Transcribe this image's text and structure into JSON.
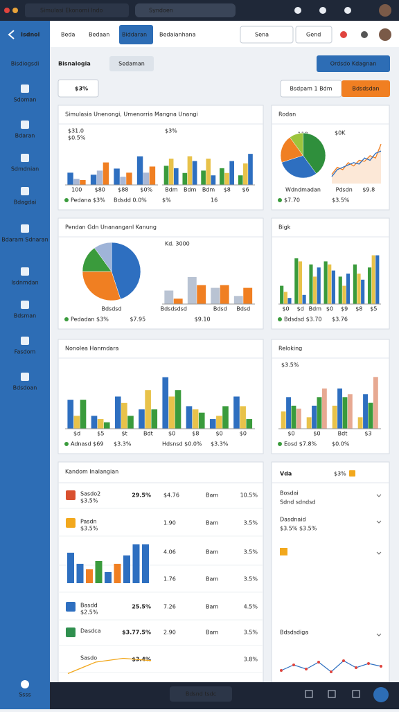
{
  "browser": {
    "tab": "Simulasi Ekonomi Indo",
    "tab2": "Syndoen"
  },
  "header": {
    "logo": "Isdnol",
    "nav": [
      "Beda",
      "Bedaan",
      "Biddaran",
      "Bedaianhana"
    ],
    "search": "Sena",
    "search2": "Gend"
  },
  "sidebar": {
    "title": "Bisdiogsdi",
    "items": [
      "Sdoman",
      "Bdaran",
      "Sdmdnian",
      "Bdagdai",
      "Bdaram Sdnaran",
      "Isdnmdan",
      "Bdsman",
      "Fasdom",
      "Bdsdoan"
    ],
    "footer": "Ssss"
  },
  "page": {
    "title": "Bisnalogia",
    "badge": "Sedaman",
    "button": "Ordsdo Kdagnan",
    "search": "$3%",
    "filter": "Bsdpam 1 Bdm",
    "action": "Bdsdsdan"
  },
  "panels": [
    {
      "title": "Simulasia Unenongi, Umenorria Mangna Unangi",
      "charts": [
        {
          "type": "bar",
          "notes": [
            "$31.0",
            "$0.5%"
          ],
          "categories": [
            "100",
            "$80",
            "$88",
            "$0%"
          ],
          "ylim": [
            0,
            100
          ],
          "series": [
            {
              "color": "#2e6fc0",
              "values": [
                30,
                25,
                40,
                70
              ]
            },
            {
              "color": "#a9b8d6",
              "values": [
                15,
                35,
                20,
                30
              ]
            },
            {
              "color": "#f07f22",
              "values": [
                12,
                55,
                30,
                45
              ]
            }
          ]
        },
        {
          "type": "bar",
          "notes": [
            "$3%"
          ],
          "categories": [
            "Bdm",
            "Bdm",
            "Bdm",
            "$8",
            "$6"
          ],
          "ylim": [
            0,
            100
          ],
          "series": [
            {
              "color": "#3a9b3c",
              "values": [
                40,
                25,
                30,
                35,
                20
              ]
            },
            {
              "color": "#e8c24a",
              "values": [
                55,
                60,
                55,
                25,
                45
              ]
            },
            {
              "color": "#2e6fc0",
              "values": [
                35,
                50,
                20,
                50,
                65
              ]
            }
          ]
        }
      ],
      "footer": [
        "Pedana $3%",
        "Bdsdd 0.0%",
        "$%",
        "16"
      ]
    },
    {
      "title": "Rodan",
      "charts": [
        {
          "type": "pie",
          "notes": [
            "110"
          ],
          "values": [
            40,
            30,
            20,
            10
          ],
          "colors": [
            "#2f8f3c",
            "#2e6fc0",
            "#f07f22",
            "#9cc43c"
          ],
          "bottom": [
            "Wdndmadan"
          ]
        },
        {
          "type": "line",
          "notes": [
            "$0K"
          ],
          "ylim": [
            0,
            100
          ],
          "series": [
            {
              "color": "#f07f22",
              "values": [
                20,
                35,
                30,
                45,
                38,
                50,
                48,
                60,
                55,
                85
              ]
            },
            {
              "color": "#2e6fc0",
              "values": [
                15,
                30,
                35,
                40,
                45,
                42,
                55,
                50,
                65,
                70
              ]
            }
          ],
          "bottom": [
            "Pdsdn",
            "$9.8"
          ]
        }
      ],
      "footer": [
        "$7.70",
        "$3.5%"
      ]
    },
    {
      "title": "Pendan Gdn Unananganl Kanung",
      "charts": [
        {
          "type": "pie",
          "values": [
            45,
            30,
            15,
            10
          ],
          "colors": [
            "#2e6fc0",
            "#f07f22",
            "#3a9b3c",
            "#9fb4d8"
          ],
          "bottom": [
            "Bdsdsd"
          ]
        },
        {
          "type": "bar",
          "notes": [
            "Kd. 3000"
          ],
          "categories": [
            "Bdsdsdsd",
            null,
            "Bdsd",
            "Bdsd"
          ],
          "ylim": [
            0,
            100
          ],
          "series": [
            {
              "color": "#b9c3d3",
              "values": [
                25,
                50,
                30,
                15
              ]
            },
            {
              "color": "#f07f22",
              "values": [
                10,
                35,
                35,
                30
              ]
            }
          ]
        }
      ],
      "footer": [
        "Pedadan $3%",
        "$7.95",
        "$9.10"
      ]
    },
    {
      "title": "Bigk",
      "charts": [
        {
          "type": "bar",
          "categories": [
            "$0",
            "$d",
            "Bdm",
            "$0",
            "$9",
            "$8",
            "$5"
          ],
          "ylim": [
            0,
            100
          ],
          "series": [
            {
              "color": "#3a9b3c",
              "values": [
                30,
                75,
                65,
                70,
                45,
                65,
                60
              ]
            },
            {
              "color": "#e8c24a",
              "values": [
                20,
                70,
                45,
                65,
                30,
                50,
                80
              ]
            },
            {
              "color": "#2e6fc0",
              "values": [
                10,
                15,
                60,
                55,
                50,
                40,
                80
              ]
            }
          ]
        }
      ],
      "footer": [
        "Bdsdsd $3.70",
        "$3.76"
      ]
    },
    {
      "title": "Nonolea Hanmdara",
      "charts": [
        {
          "type": "bar",
          "categories": [
            "$d",
            "$5",
            "$t",
            "Bdt",
            "$0",
            "$8",
            "$0",
            "$0"
          ],
          "ylim": [
            0,
            100
          ],
          "series": [
            {
              "color": "#2e6fc0",
              "values": [
                45,
                20,
                50,
                30,
                80,
                35,
                15,
                50
              ]
            },
            {
              "color": "#e8c24a",
              "values": [
                20,
                15,
                40,
                60,
                50,
                30,
                20,
                35
              ]
            },
            {
              "color": "#3a9b3c",
              "values": [
                45,
                10,
                20,
                30,
                60,
                25,
                35,
                15
              ]
            }
          ]
        }
      ],
      "footer": [
        "Adnasd $69",
        "$3.3%",
        "Hdsnsd $0.0%",
        "$3.3%"
      ]
    },
    {
      "title": "Reloking",
      "charts": [
        {
          "type": "bar",
          "notes": [
            "$3.5%"
          ],
          "categories": [
            "$0",
            "$0",
            "Bdt",
            "$3"
          ],
          "ylim": [
            0,
            100
          ],
          "series": [
            {
              "color": "#e8c24a",
              "values": [
                30,
                20,
                40,
                20
              ]
            },
            {
              "color": "#2e6fc0",
              "values": [
                55,
                40,
                70,
                60
              ]
            },
            {
              "color": "#3a9b3c",
              "values": [
                40,
                55,
                55,
                45
              ]
            },
            {
              "color": "#e7a992",
              "values": [
                35,
                70,
                60,
                90
              ]
            }
          ]
        }
      ],
      "footer": [
        "Eosd $7.8%",
        "$0.0%"
      ]
    }
  ],
  "table": {
    "title": "Kandom Inalangian",
    "rows": [
      {
        "name": "Sasdo2",
        "sub": "$3.5%",
        "change": "29.5%",
        "value": "$4.76",
        "unit": "Bam",
        "pct": "10.5%",
        "icon": "#d9502f"
      },
      {
        "name": "Pasdn",
        "sub": "$3.5%",
        "value": "1.90",
        "unit": "Bam",
        "pct": "3.5%",
        "icon": "#f2a81d"
      },
      {
        "value": "4.06",
        "unit": "Bam",
        "pct": "3.5%"
      },
      {
        "value": "1.76",
        "unit": "Bam",
        "pct": "3.5%"
      },
      {
        "name": "Basdd",
        "sub": "$2.5%",
        "change": "25.5%",
        "value": "7.26",
        "unit": "Bam",
        "pct": "4.5%",
        "icon": "#2e6fc0"
      },
      {
        "name": "Dasdca",
        "change": "$3.77.5%",
        "value": "2.90",
        "unit": "Bam",
        "pct": "3.5%",
        "icon": "#2f8f4e"
      },
      {
        "name": "Sasdo",
        "change": "$3.4%",
        "pct": "3.8%"
      }
    ],
    "bars": {
      "ylim": [
        0,
        100
      ],
      "values": [
        55,
        35,
        25,
        40,
        20,
        35,
        50,
        70,
        70
      ],
      "colors": [
        "#2e6fc0",
        "#2e6fc0",
        "#f07f22",
        "#3a9b3c",
        "#2e6fc0",
        "#f07f22",
        "#2e6fc0",
        "#2e6fc0",
        "#2e6fc0"
      ]
    },
    "line": {
      "ylim": [
        0,
        30
      ],
      "values": [
        5,
        20,
        25,
        22
      ],
      "color": "#f2a81d"
    }
  },
  "list": {
    "title": "Vda",
    "tab": "$3%",
    "items": [
      {
        "title": "Bosdai",
        "sub": "Sdnd sdndsd"
      },
      {
        "title": "Dasdnaid",
        "sub": "$3.5% $3.5%"
      },
      {
        "title": "Bdsdsdiga"
      }
    ],
    "line": {
      "ylim": [
        0,
        100
      ],
      "values": [
        25,
        45,
        30,
        55,
        20,
        60,
        35,
        50,
        40
      ],
      "color": "#2e6fc0"
    }
  },
  "footer": {
    "label": "Bdsnd tsdc"
  }
}
